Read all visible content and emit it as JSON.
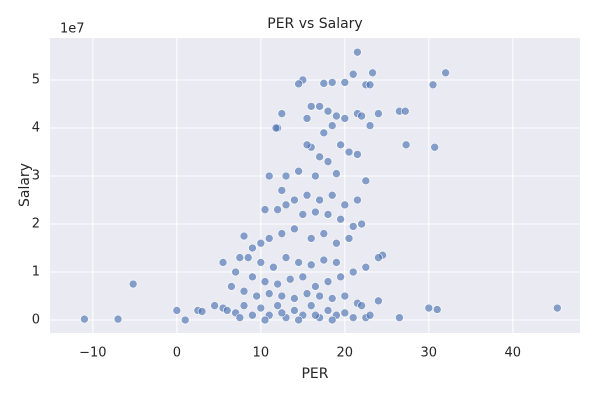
{
  "chart_data": {
    "type": "scatter",
    "title": "PER vs Salary",
    "x_label": "PER",
    "y_label": "Salary",
    "offset_label": "1e7",
    "color": "#4c72b0",
    "grid": true,
    "xlim": [
      -15.1,
      48
    ],
    "ylim": [
      -0.27,
      5.875
    ],
    "xticks": [
      {
        "value": -10,
        "label": "−10"
      },
      0,
      10,
      20,
      30,
      40
    ],
    "yticks": [
      0,
      1,
      2,
      3,
      4,
      5
    ],
    "x": [
      -11,
      -7,
      -5.2,
      0,
      1,
      2.5,
      3,
      4.5,
      5.5,
      5.5,
      45.3,
      30,
      31,
      26.5,
      22.5,
      24,
      30.7,
      27.3,
      30.5,
      32,
      26.5,
      27.2,
      21.5,
      23.3,
      21,
      22.5,
      23,
      20,
      18.5,
      17.5,
      15,
      14.5,
      12.5,
      12,
      11.8,
      15.5,
      16,
      17,
      18,
      19,
      20,
      21.5,
      22,
      23,
      24,
      18.5,
      17.5,
      19.5,
      20.5,
      21.5,
      16,
      15.5,
      17,
      18,
      13,
      14.5,
      16.5,
      19,
      22.5,
      11,
      12.5,
      14,
      15.5,
      17,
      18.5,
      20,
      21.5,
      10.5,
      12,
      13,
      15,
      16.5,
      18,
      19.5,
      21,
      22,
      8,
      9,
      10,
      11,
      12.5,
      14,
      16,
      17.5,
      19,
      20.5,
      7.5,
      8.5,
      10,
      11.5,
      13,
      14.5,
      16,
      17.5,
      19,
      21,
      22.5,
      24.5,
      24,
      7,
      9,
      10.5,
      12,
      13.5,
      15,
      16.5,
      18,
      19.5,
      6.5,
      8,
      9.5,
      11,
      12.5,
      14,
      15.5,
      17,
      18.5,
      20,
      21.5,
      6,
      7,
      8,
      9,
      10,
      11,
      12,
      13,
      14,
      15,
      16,
      17,
      18,
      19,
      20,
      22,
      23,
      7.5,
      10.5,
      12.5,
      14.5,
      16.5,
      18.5,
      21
    ],
    "values": [
      0.02,
      0.02,
      0.75,
      0.2,
      0,
      0.2,
      0.18,
      0.3,
      1.2,
      0.25,
      0.25,
      0.25,
      0.22,
      0.05,
      0.05,
      0.4,
      3.6,
      3.65,
      4.9,
      5.15,
      4.35,
      4.35,
      5.58,
      5.15,
      5.12,
      4.9,
      4.9,
      4.95,
      4.95,
      4.93,
      5.0,
      4.92,
      4.3,
      4.0,
      4.0,
      4.2,
      4.45,
      4.45,
      4.35,
      4.25,
      4.2,
      4.3,
      4.25,
      4.05,
      4.3,
      4.05,
      3.9,
      3.65,
      3.5,
      3.45,
      3.6,
      3.65,
      3.4,
      3.3,
      3.0,
      3.1,
      3.0,
      3.05,
      2.9,
      3.0,
      2.7,
      2.5,
      2.6,
      2.5,
      2.6,
      2.4,
      2.5,
      2.3,
      2.3,
      2.4,
      2.2,
      2.25,
      2.2,
      2.1,
      1.95,
      2.0,
      1.75,
      1.5,
      1.6,
      1.7,
      1.8,
      1.9,
      1.7,
      1.8,
      1.6,
      1.7,
      1.3,
      1.3,
      1.2,
      1.1,
      1.3,
      1.2,
      1.15,
      1.25,
      1.2,
      1.0,
      1.1,
      1.35,
      1.3,
      1.0,
      0.9,
      0.8,
      0.75,
      0.85,
      0.9,
      0.7,
      0.8,
      0.9,
      0.7,
      0.6,
      0.5,
      0.55,
      0.5,
      0.45,
      0.55,
      0.5,
      0.45,
      0.5,
      0.35,
      0.2,
      0.15,
      0.3,
      0.1,
      0.25,
      0.1,
      0.3,
      0.05,
      0.2,
      0.1,
      0.3,
      0.05,
      0.2,
      0.1,
      0.15,
      0.3,
      0.1,
      0.05,
      0.0,
      0.15,
      0.0,
      0.1,
      0.0,
      0.05
    ]
  }
}
